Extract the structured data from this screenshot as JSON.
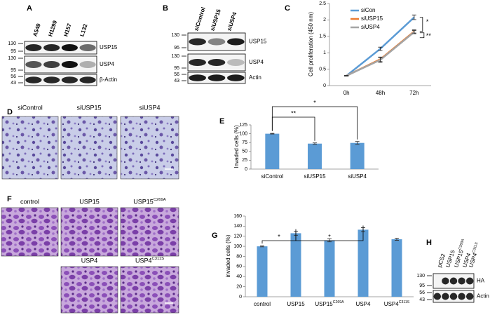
{
  "panels": {
    "letters": [
      "A",
      "B",
      "C",
      "D",
      "E",
      "F",
      "G",
      "H"
    ]
  },
  "blot_a": {
    "lanes": [
      "A549",
      "H1299",
      "H157",
      "L132"
    ],
    "mw": [
      130,
      95,
      130,
      95,
      56,
      43
    ],
    "bands": [
      "USP15",
      "USP4",
      "β-Actin"
    ]
  },
  "blot_b": {
    "lanes": [
      "siControl",
      "siUSP15",
      "siUSP4"
    ],
    "mw": [
      130,
      95,
      130,
      95,
      56,
      43
    ],
    "bands": [
      "USP15",
      "USP4",
      "Actin"
    ]
  },
  "blot_h": {
    "lanes": [
      {
        "text": "pCS2"
      },
      {
        "text": "USP15"
      },
      {
        "text": "USP15",
        "sup": "C269A"
      },
      {
        "text": "USP4"
      },
      {
        "text": "USP4",
        "sup": "C311S"
      }
    ],
    "mw": [
      130,
      95,
      56,
      43
    ],
    "bands": [
      "HA",
      "Actin"
    ]
  },
  "images_d": {
    "labels": [
      {
        "text": "siControl"
      },
      {
        "text": "siUSP15"
      },
      {
        "text": "siUSP4"
      }
    ]
  },
  "images_f": {
    "labels": [
      {
        "text": "control"
      },
      {
        "text": "USP15"
      },
      {
        "text": "USP15",
        "sup": "C269A"
      },
      {
        "text": "USP4"
      },
      {
        "text": "USP4",
        "sup": "C311S"
      }
    ]
  },
  "chart_data": [
    {
      "type": "line",
      "y_label": "Cell proliferation (450 nm)",
      "categories": [
        "0h",
        "48h",
        "72h"
      ],
      "series": [
        {
          "name": "siCon",
          "color": "#5b9bd5",
          "values": [
            0.3,
            1.12,
            2.08
          ],
          "errors": [
            0.01,
            0.05,
            0.07
          ]
        },
        {
          "name": "siUSP15",
          "color": "#ed7d31",
          "values": [
            0.3,
            0.8,
            1.65
          ],
          "errors": [
            0.01,
            0.07,
            0.05
          ]
        },
        {
          "name": "siUSP4",
          "color": "#a5a5a5",
          "values": [
            0.3,
            0.78,
            1.63
          ],
          "errors": [
            0.01,
            0.07,
            0.05
          ]
        }
      ],
      "ylim": [
        0,
        2.5
      ],
      "yticks": [
        0,
        0.5,
        1,
        1.5,
        2,
        2.5
      ],
      "annotations": [
        "*",
        "**"
      ]
    },
    {
      "type": "bar",
      "y_label": "Invaded cells (%)",
      "categories": [
        "siControl",
        "siUSP15",
        "siUSP4"
      ],
      "values": [
        100,
        72,
        74
      ],
      "errors": [
        1,
        2,
        4
      ],
      "color": "#5b9bd5",
      "ylim": [
        0,
        125
      ],
      "yticks": [
        0,
        25,
        50,
        75,
        100,
        125
      ],
      "annotations": [
        "**",
        "*"
      ]
    },
    {
      "type": "bar",
      "y_label": "invaded cells (%)",
      "categories": [
        "control",
        "USP15",
        "USP15",
        "USP4",
        "USP4"
      ],
      "category_sup": {
        "2": "C269A",
        "4": "C311S"
      },
      "values": [
        100,
        126,
        112,
        133,
        114
      ],
      "errors": [
        1,
        4,
        3,
        4,
        2
      ],
      "color": "#5b9bd5",
      "ylim": [
        0,
        160
      ],
      "yticks": [
        0,
        20,
        40,
        60,
        80,
        100,
        120,
        140,
        160
      ],
      "annotations": [
        "*",
        "*"
      ]
    }
  ]
}
